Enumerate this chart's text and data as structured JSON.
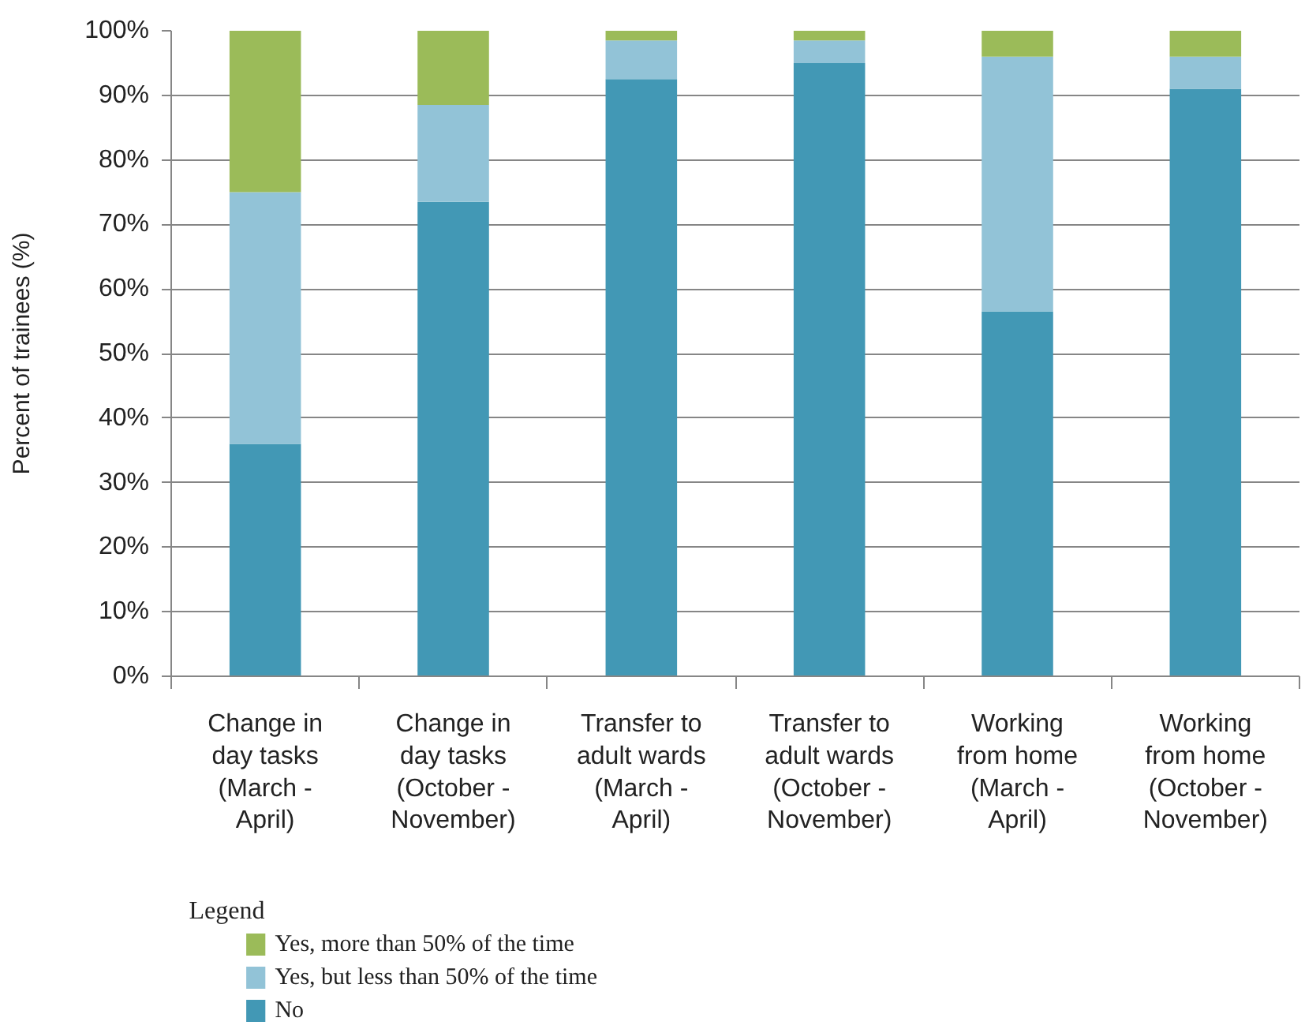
{
  "chart_data": {
    "type": "bar",
    "stacked": true,
    "ylabel": "Percent of trainees (%)",
    "legend_title": "Legend",
    "legend": "bottom left",
    "grid": "y",
    "categories": [
      "Change in day tasks (March - April)",
      "Change in day tasks (October - November)",
      "Transfer to adult wards (March - April)",
      "Transfer to adult wards (October - November)",
      "Working from home (March - April)",
      "Working from home (October - November)"
    ],
    "series": [
      {
        "name": "No",
        "color": "#4298b5",
        "values": [
          36,
          73.5,
          92.5,
          95,
          56.5,
          91
        ]
      },
      {
        "name": "Yes, but less than 50% of the time",
        "color": "#92c3d7",
        "values": [
          39,
          15,
          6,
          3.5,
          39.5,
          5
        ]
      },
      {
        "name": "Yes, more than 50% of the time",
        "color": "#9bbb59",
        "values": [
          25,
          11.5,
          1.5,
          1.5,
          4,
          4
        ]
      }
    ],
    "ylim": [
      0,
      100
    ],
    "yticks": [
      {
        "value": 0,
        "label": "0%"
      },
      {
        "value": 10,
        "label": "10%"
      },
      {
        "value": 20,
        "label": "20%"
      },
      {
        "value": 30,
        "label": "30%"
      },
      {
        "value": 40,
        "label": "40%"
      },
      {
        "value": 50,
        "label": "50%"
      },
      {
        "value": 60,
        "label": "60%"
      },
      {
        "value": 70,
        "label": "70%"
      },
      {
        "value": 80,
        "label": "80%"
      },
      {
        "value": 90,
        "label": "90%"
      },
      {
        "value": 100,
        "label": "100%"
      }
    ]
  }
}
